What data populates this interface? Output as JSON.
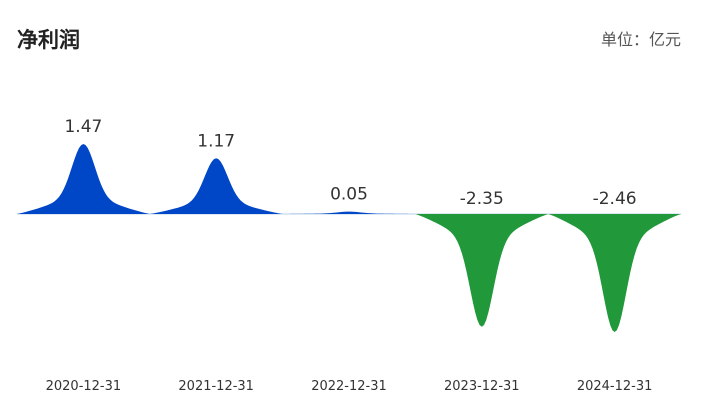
{
  "header": {
    "title": "净利润",
    "unit": "单位：亿元"
  },
  "colors": {
    "positive": "#0047C8",
    "negative": "#21993A",
    "baseline_edge": "#B8D3E8"
  },
  "chart_data": {
    "type": "area",
    "categories": [
      "2020-12-31",
      "2021-12-31",
      "2022-12-31",
      "2023-12-31",
      "2024-12-31"
    ],
    "values": [
      1.47,
      1.17,
      0.05,
      -2.35,
      -2.46
    ],
    "value_labels": [
      "1.47",
      "1.17",
      "0.05",
      "-2.35",
      "-2.46"
    ],
    "title": "净利润",
    "unit": "单位：亿元",
    "ylim": [
      -2.46,
      1.47
    ],
    "grid": false,
    "legend": "none"
  }
}
